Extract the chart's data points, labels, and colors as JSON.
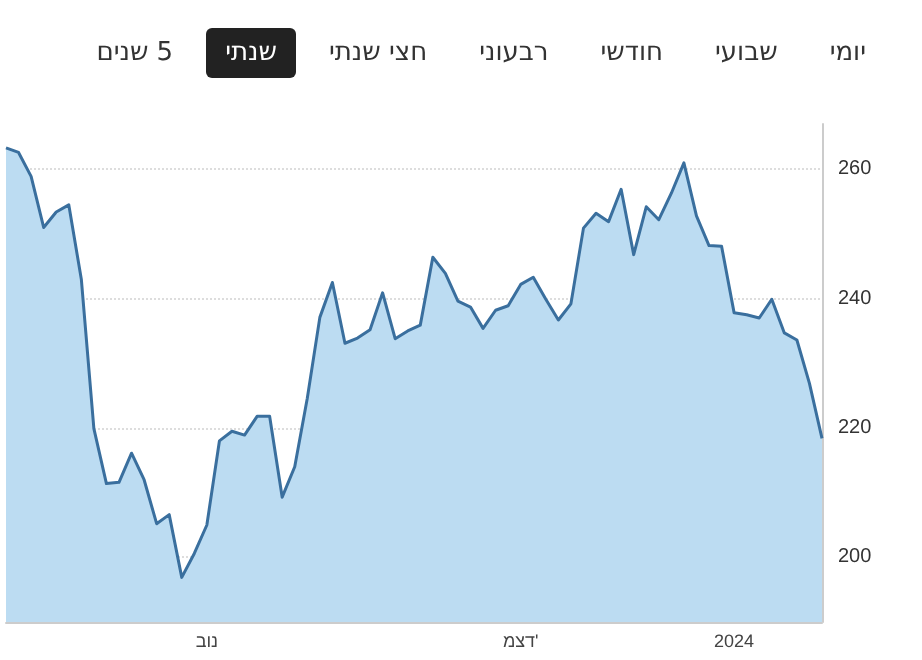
{
  "chart_data": {
    "type": "area",
    "annotations": [
      "יומי",
      "שבועי",
      "חודשי",
      "רבעוני",
      "חצי שנתי",
      "שנתי",
      "5 שנים"
    ],
    "categories": [
      null,
      null,
      null,
      null,
      null,
      null,
      null,
      null,
      null,
      null,
      null,
      null,
      null,
      null,
      null,
      null,
      "נוב",
      null,
      null,
      null,
      null,
      null,
      null,
      null,
      null,
      null,
      null,
      null,
      null,
      null,
      null,
      null,
      null,
      null,
      null,
      null,
      null,
      null,
      null,
      null,
      null,
      "דצמ'",
      null,
      null,
      null,
      null,
      null,
      null,
      null,
      null,
      null,
      null,
      null,
      null,
      null,
      null,
      null,
      null,
      "2024",
      null,
      null,
      null,
      null,
      null,
      null,
      null
    ],
    "values": [
      263.3,
      262.6,
      258.9,
      251,
      253.4,
      254.5,
      243,
      219.9,
      211.4,
      211.6,
      216.1,
      212,
      205.2,
      206.6,
      196.9,
      200.6,
      205,
      218,
      219.5,
      218.9,
      221.8,
      221.8,
      209.3,
      214,
      224.6,
      237.1,
      242.5,
      233.1,
      233.9,
      235.2,
      240.9,
      233.8,
      235,
      235.9,
      246.4,
      243.9,
      239.6,
      238.7,
      235.4,
      238.2,
      238.9,
      242.2,
      243.3,
      239.9,
      236.7,
      239.2,
      250.9,
      253.2,
      251.9,
      256.9,
      246.8,
      254.2,
      252.2,
      256.3,
      261,
      252.8,
      248.2,
      248.1,
      237.8,
      237.5,
      237,
      239.9,
      234.7,
      233.6,
      226.9,
      218.4
    ],
    "color": "#3a6f9e",
    "ylim": [
      190,
      267
    ],
    "yticks": [
      200,
      220,
      240,
      260
    ],
    "grid": "y",
    "marker": "none"
  }
}
